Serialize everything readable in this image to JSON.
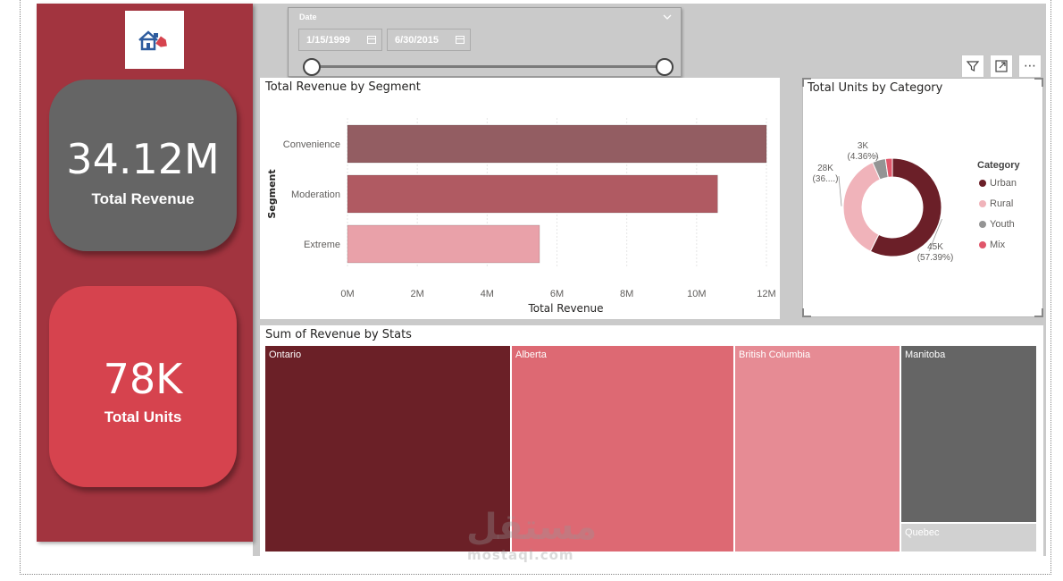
{
  "colors": {
    "sidebar": "#a2343f",
    "kpi_revenue_bg": "#656565",
    "kpi_units_bg": "#d6434e",
    "canvas_bg": "#cacaca"
  },
  "kpis": {
    "revenue": {
      "value": "34.12M",
      "label": "Total Revenue"
    },
    "units": {
      "value": "78K",
      "label": "Total Units"
    }
  },
  "date_slicer": {
    "title": "Date",
    "start": "1/15/1999",
    "end": "6/30/2015",
    "chevron_icon": "chevron-down-icon",
    "calendar_icon": "calendar-icon"
  },
  "toolbar": {
    "icons": [
      "filter-icon",
      "focus-mode-icon",
      "more-options-icon"
    ],
    "more_label": "⋯"
  },
  "bar_chart": {
    "title": "Total Revenue by Segment",
    "chart_data": {
      "type": "bar",
      "orientation": "horizontal",
      "title": "Total Revenue by Segment",
      "xlabel": "Total Revenue",
      "ylabel": "Segment",
      "categories": [
        "Convenience",
        "Moderation",
        "Extreme"
      ],
      "values": [
        12.0,
        10.6,
        5.5
      ],
      "value_unit": "M",
      "colors": [
        "#935d62",
        "#b05a62",
        "#e9a1a9"
      ],
      "xlim": [
        0,
        12
      ],
      "ticks": [
        "0M",
        "2M",
        "4M",
        "6M",
        "8M",
        "10M",
        "12M"
      ],
      "grid": true
    }
  },
  "donut_chart": {
    "title": "Total Units by Category",
    "legend_title": "Category",
    "chart_data": {
      "type": "pie",
      "title": "Total Units by Category",
      "categories": [
        "Urban",
        "Rural",
        "Youth",
        "Mix"
      ],
      "values": [
        57.39,
        36.0,
        4.36,
        2.25
      ],
      "colors": [
        "#6b1f28",
        "#f0b3ba",
        "#949494",
        "#e0566a"
      ],
      "data_labels": [
        {
          "value": "45K",
          "pct": "(57.39%)"
        },
        {
          "value": "28K",
          "pct": "(36....)"
        },
        {
          "value": "3K",
          "pct": "(4.36%)"
        }
      ],
      "legend_position": "right"
    }
  },
  "treemap": {
    "title": "Sum of Revenue by Stats",
    "chart_data": {
      "type": "treemap",
      "title": "Sum of Revenue by Stats",
      "categories": [
        "Ontario",
        "Alberta",
        "British Columbia",
        "Manitoba",
        "Quebec"
      ],
      "colors": [
        "#6b2027",
        "#dd6973",
        "#e68b94",
        "#656565",
        "#d1d1d1"
      ]
    }
  },
  "watermark": {
    "arabic": "مستقل",
    "latin": "mostaql.com"
  }
}
